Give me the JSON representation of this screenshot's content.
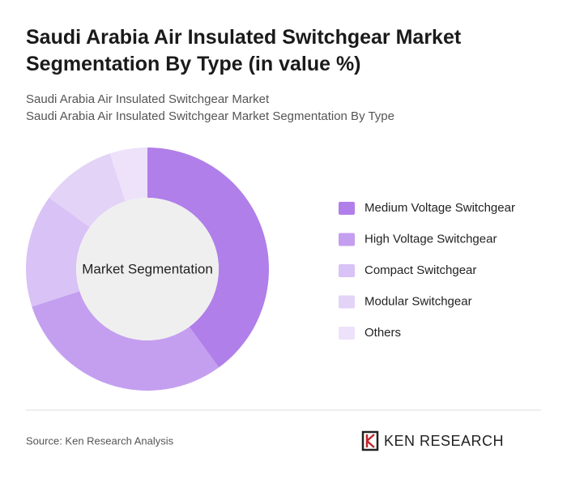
{
  "chart_data": {
    "type": "donut",
    "title": "Saudi Arabia Air Insulated Switchgear Market Segmentation By Type (in value %)",
    "subtitles": [
      "Saudi Arabia Air Insulated Switchgear Market",
      "Saudi Arabia Air Insulated Switchgear Market Segmentation By Type"
    ],
    "center_label": "Market Segmentation",
    "categories": [
      "Medium Voltage Switchgear",
      "High Voltage Switchgear",
      "Compact Switchgear",
      "Modular Switchgear",
      "Others"
    ],
    "values": [
      40,
      30,
      15,
      10,
      5
    ],
    "colors": [
      "#b07fe9",
      "#c49ff0",
      "#d9c2f5",
      "#e3d3f7",
      "#ede2fa"
    ],
    "source": "Source: Ken Research Analysis",
    "logo": "KEN RESEARCH"
  }
}
